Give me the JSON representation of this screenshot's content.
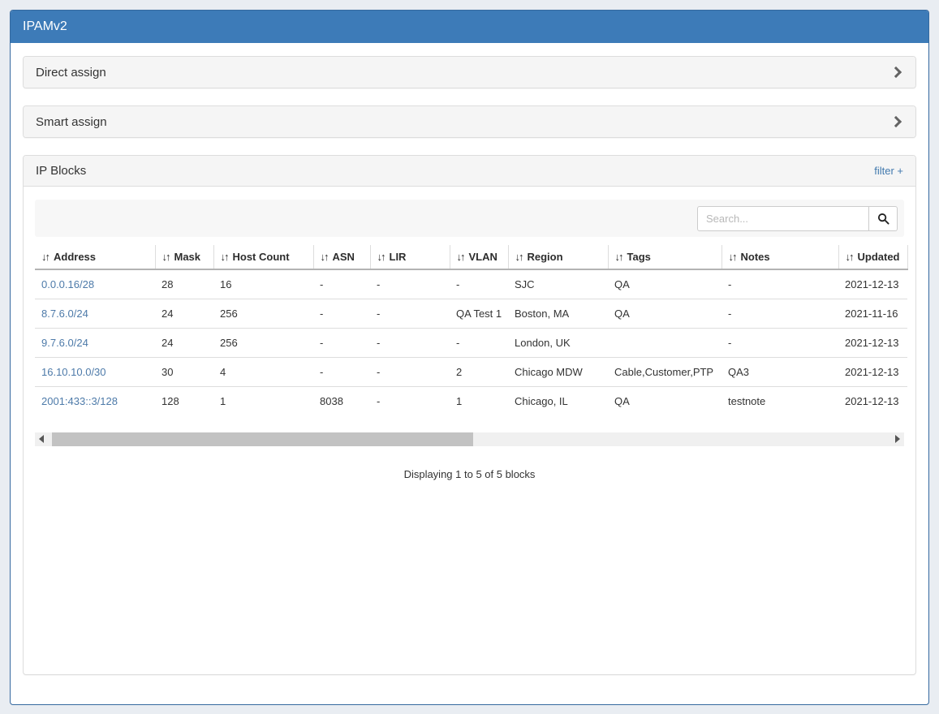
{
  "app": {
    "title": "IPAMv2"
  },
  "colors": {
    "header_bg": "#3d7bb8",
    "card_border": "#35699f",
    "panel_heading_bg": "#f5f5f5",
    "link_blue": "#4d7aa9",
    "filter_link_blue": "#4279ae",
    "scroll_thumb": "#c2c2c2"
  },
  "panels": {
    "direct_assign": {
      "title": "Direct assign"
    },
    "smart_assign": {
      "title": "Smart assign"
    },
    "ip_blocks": {
      "title": "IP Blocks",
      "filter_label": "filter +"
    }
  },
  "search": {
    "placeholder": "Search..."
  },
  "table": {
    "sort_icon": "↓↑",
    "columns": [
      "Address",
      "Mask",
      "Host Count",
      "ASN",
      "LIR",
      "VLAN",
      "Region",
      "Tags",
      "Notes",
      "Updated"
    ],
    "rows": [
      {
        "address": "0.0.0.16/28",
        "mask": "28",
        "host_count": "16",
        "asn": "-",
        "lir": "-",
        "vlan": "-",
        "region": "SJC",
        "tags": "QA",
        "notes": "-",
        "updated": "2021-12-13"
      },
      {
        "address": "8.7.6.0/24",
        "mask": "24",
        "host_count": "256",
        "asn": "-",
        "lir": "-",
        "vlan": "QA Test 1",
        "region": "Boston, MA",
        "tags": "QA",
        "notes": "-",
        "updated": "2021-11-16"
      },
      {
        "address": "9.7.6.0/24",
        "mask": "24",
        "host_count": "256",
        "asn": "-",
        "lir": "-",
        "vlan": "-",
        "region": "London, UK",
        "tags": "",
        "notes": "-",
        "updated": "2021-12-13"
      },
      {
        "address": "16.10.10.0/30",
        "mask": "30",
        "host_count": "4",
        "asn": "-",
        "lir": "-",
        "vlan": "2",
        "region": "Chicago MDW",
        "tags": "Cable,Customer,PTP",
        "notes": "QA3",
        "updated": "2021-12-13"
      },
      {
        "address": "2001:433::3/128",
        "mask": "128",
        "host_count": "1",
        "asn": "8038",
        "lir": "-",
        "vlan": "1",
        "region": "Chicago, IL",
        "tags": "QA",
        "notes": "testnote",
        "updated": "2021-12-13"
      }
    ],
    "info": "Displaying 1 to 5 of 5 blocks"
  }
}
